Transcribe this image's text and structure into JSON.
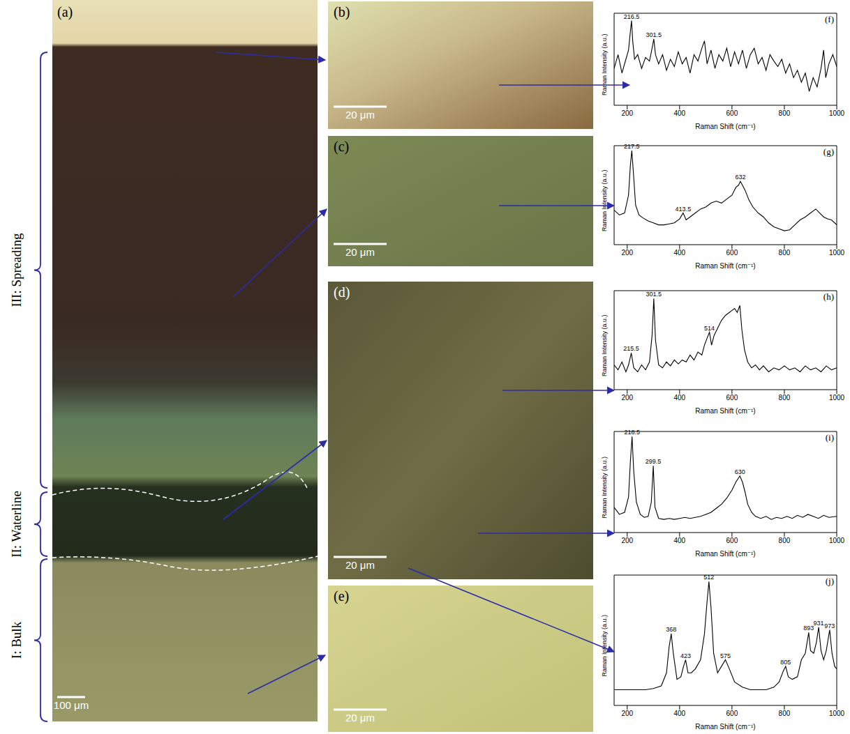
{
  "panels": [
    {
      "label": "(a)",
      "scale_bar": "100 μm",
      "regions": [
        "III: Spreading",
        "II: Waterline",
        "I: Bulk"
      ]
    },
    {
      "label": "(b)",
      "scale_bar": "20 μm"
    },
    {
      "label": "(c)",
      "scale_bar": "20 μm"
    },
    {
      "label": "(d)",
      "scale_bar": "20 μm"
    },
    {
      "label": "(e)",
      "scale_bar": "20 μm"
    }
  ],
  "chart_data": [
    {
      "type": "line",
      "title": "(f)",
      "x_label": "Raman Shift (cm⁻¹)",
      "y_label": "Raman Intensity (a.u.)",
      "color": "#000000",
      "xlim": [
        150,
        1000
      ],
      "xticks": [
        200,
        400,
        600,
        800,
        1000
      ],
      "ylim": [
        0,
        100
      ],
      "tick_labels": "x",
      "x": [
        150,
        165,
        180,
        195,
        205,
        212,
        216.5,
        221,
        228,
        240,
        255,
        270,
        285,
        295,
        301.5,
        308,
        320,
        335,
        350,
        365,
        380,
        395,
        410,
        425,
        440,
        455,
        470,
        485,
        495,
        505,
        520,
        535,
        550,
        565,
        580,
        595,
        610,
        625,
        640,
        655,
        670,
        685,
        700,
        715,
        730,
        745,
        760,
        775,
        790,
        805,
        820,
        835,
        850,
        865,
        880,
        895,
        910,
        925,
        940,
        950,
        958,
        970,
        985,
        1000
      ],
      "values": [
        40,
        55,
        35,
        50,
        60,
        80,
        92,
        70,
        50,
        55,
        40,
        52,
        48,
        62,
        72,
        55,
        45,
        55,
        38,
        50,
        42,
        58,
        45,
        52,
        35,
        55,
        48,
        62,
        70,
        45,
        60,
        40,
        55,
        48,
        62,
        42,
        58,
        45,
        60,
        40,
        55,
        62,
        45,
        52,
        38,
        55,
        48,
        42,
        50,
        35,
        45,
        30,
        38,
        25,
        35,
        15,
        30,
        20,
        40,
        60,
        30,
        45,
        55,
        42
      ],
      "annotations": [
        {
          "x": 216.5,
          "y": 92,
          "text": "216.5"
        },
        {
          "x": 301.5,
          "y": 72,
          "text": "301.5"
        }
      ]
    },
    {
      "type": "line",
      "title": "(g)",
      "x_label": "Raman Shift (cm⁻¹)",
      "y_label": "Raman Intensity (a.u.)",
      "color": "#000000",
      "xlim": [
        150,
        1000
      ],
      "xticks": [
        200,
        400,
        600,
        800,
        1000
      ],
      "ylim": [
        0,
        100
      ],
      "tick_labels": "x",
      "x": [
        150,
        170,
        190,
        205,
        212,
        217.5,
        223,
        232,
        245,
        260,
        280,
        300,
        320,
        340,
        360,
        380,
        400,
        413.5,
        425,
        440,
        460,
        480,
        500,
        520,
        540,
        560,
        580,
        600,
        615,
        625,
        632,
        640,
        650,
        665,
        680,
        700,
        720,
        740,
        760,
        780,
        800,
        820,
        840,
        860,
        880,
        900,
        920,
        935,
        950,
        965,
        980,
        1000
      ],
      "values": [
        35,
        30,
        32,
        50,
        80,
        95,
        75,
        40,
        30,
        27,
        24,
        22,
        20,
        20,
        21,
        22,
        26,
        32,
        25,
        28,
        32,
        36,
        38,
        42,
        44,
        42,
        46,
        50,
        58,
        60,
        64,
        60,
        55,
        45,
        38,
        32,
        28,
        22,
        18,
        16,
        14,
        15,
        20,
        25,
        28,
        32,
        36,
        32,
        28,
        26,
        25,
        20
      ],
      "annotations": [
        {
          "x": 217.5,
          "y": 95,
          "text": "217.5"
        },
        {
          "x": 413.5,
          "y": 32,
          "text": "413.5"
        },
        {
          "x": 632,
          "y": 64,
          "text": "632"
        }
      ]
    },
    {
      "type": "line",
      "title": "(h)",
      "x_label": "Raman Shift (cm⁻¹)",
      "y_label": "Raman Intensity (a.u.)",
      "color": "#000000",
      "xlim": [
        150,
        1000
      ],
      "xticks": [
        200,
        400,
        600,
        800,
        1000
      ],
      "ylim": [
        0,
        100
      ],
      "tick_labels": "x",
      "x": [
        150,
        165,
        180,
        195,
        205,
        215.5,
        225,
        240,
        255,
        270,
        285,
        295,
        301.5,
        308,
        320,
        335,
        350,
        365,
        380,
        395,
        410,
        425,
        440,
        455,
        470,
        485,
        495,
        505,
        514,
        522,
        532,
        545,
        560,
        575,
        590,
        600,
        610,
        620,
        630,
        638,
        648,
        660,
        675,
        690,
        705,
        720,
        740,
        760,
        780,
        800,
        820,
        840,
        860,
        880,
        900,
        920,
        940,
        960,
        980,
        1000
      ],
      "values": [
        25,
        20,
        28,
        18,
        25,
        37,
        22,
        18,
        25,
        20,
        28,
        55,
        92,
        50,
        25,
        22,
        28,
        24,
        30,
        26,
        30,
        28,
        35,
        30,
        38,
        35,
        45,
        52,
        58,
        45,
        55,
        62,
        70,
        75,
        78,
        80,
        82,
        78,
        85,
        60,
        40,
        28,
        22,
        25,
        20,
        24,
        18,
        22,
        20,
        24,
        20,
        22,
        18,
        24,
        20,
        22,
        18,
        24,
        20,
        22
      ],
      "annotations": [
        {
          "x": 215.5,
          "y": 37,
          "text": "215.5"
        },
        {
          "x": 301.5,
          "y": 92,
          "text": "301.5"
        },
        {
          "x": 514,
          "y": 58,
          "text": "514"
        }
      ]
    },
    {
      "type": "line",
      "title": "(i)",
      "x_label": "Raman Shift (cm⁻¹)",
      "y_label": "Raman Intensity (a.u.)",
      "color": "#000000",
      "xlim": [
        150,
        1000
      ],
      "xticks": [
        200,
        400,
        600,
        800,
        1000
      ],
      "ylim": [
        0,
        100
      ],
      "tick_labels": "x",
      "x": [
        150,
        170,
        190,
        205,
        212,
        218.5,
        225,
        235,
        250,
        265,
        280,
        292,
        299.5,
        306,
        320,
        340,
        360,
        380,
        400,
        420,
        440,
        460,
        480,
        500,
        520,
        540,
        560,
        580,
        600,
        615,
        625,
        630,
        640,
        650,
        660,
        675,
        690,
        710,
        730,
        750,
        770,
        790,
        810,
        830,
        850,
        870,
        890,
        910,
        930,
        950,
        970,
        1000
      ],
      "values": [
        25,
        18,
        20,
        35,
        70,
        95,
        60,
        30,
        18,
        15,
        16,
        30,
        66,
        25,
        14,
        13,
        14,
        13,
        14,
        15,
        14,
        15,
        16,
        18,
        20,
        24,
        28,
        34,
        42,
        50,
        54,
        56,
        50,
        40,
        28,
        20,
        16,
        14,
        16,
        13,
        15,
        14,
        16,
        14,
        17,
        15,
        18,
        16,
        14,
        17,
        15,
        16
      ],
      "annotations": [
        {
          "x": 218.5,
          "y": 95,
          "text": "218.5"
        },
        {
          "x": 299.5,
          "y": 66,
          "text": "299.5"
        },
        {
          "x": 630,
          "y": 56,
          "text": "630"
        }
      ]
    },
    {
      "type": "line",
      "title": "(j)",
      "x_label": "Raman Shift (cm⁻¹)",
      "y_label": "Raman Intensity (a.u.)",
      "color": "#000000",
      "xlim": [
        150,
        1000
      ],
      "xticks": [
        200,
        400,
        600,
        800,
        1000
      ],
      "ylim": [
        0,
        100
      ],
      "tick_labels": "x",
      "x": [
        150,
        180,
        210,
        240,
        270,
        300,
        330,
        350,
        360,
        368,
        376,
        390,
        405,
        415,
        423,
        432,
        445,
        460,
        480,
        495,
        505,
        512,
        520,
        530,
        545,
        560,
        575,
        590,
        610,
        640,
        670,
        700,
        730,
        760,
        780,
        795,
        805,
        815,
        830,
        850,
        865,
        880,
        893,
        900,
        912,
        922,
        931,
        940,
        950,
        960,
        973,
        982,
        992,
        1000
      ],
      "values": [
        12,
        12,
        12,
        12,
        12,
        13,
        15,
        25,
        45,
        55,
        40,
        20,
        22,
        30,
        35,
        25,
        25,
        28,
        35,
        55,
        80,
        95,
        75,
        40,
        25,
        30,
        35,
        28,
        18,
        14,
        12,
        12,
        12,
        14,
        18,
        26,
        30,
        22,
        20,
        22,
        35,
        40,
        56,
        42,
        40,
        48,
        60,
        42,
        35,
        42,
        58,
        40,
        30,
        28
      ],
      "annotations": [
        {
          "x": 368,
          "y": 55,
          "text": "368"
        },
        {
          "x": 423,
          "y": 35,
          "text": "423"
        },
        {
          "x": 512,
          "y": 95,
          "text": "512"
        },
        {
          "x": 575,
          "y": 35,
          "text": "575"
        },
        {
          "x": 805,
          "y": 30,
          "text": "805"
        },
        {
          "x": 893,
          "y": 56,
          "text": "893"
        },
        {
          "x": 931,
          "y": 60,
          "text": "931"
        },
        {
          "x": 973,
          "y": 58,
          "text": "973"
        }
      ]
    }
  ]
}
